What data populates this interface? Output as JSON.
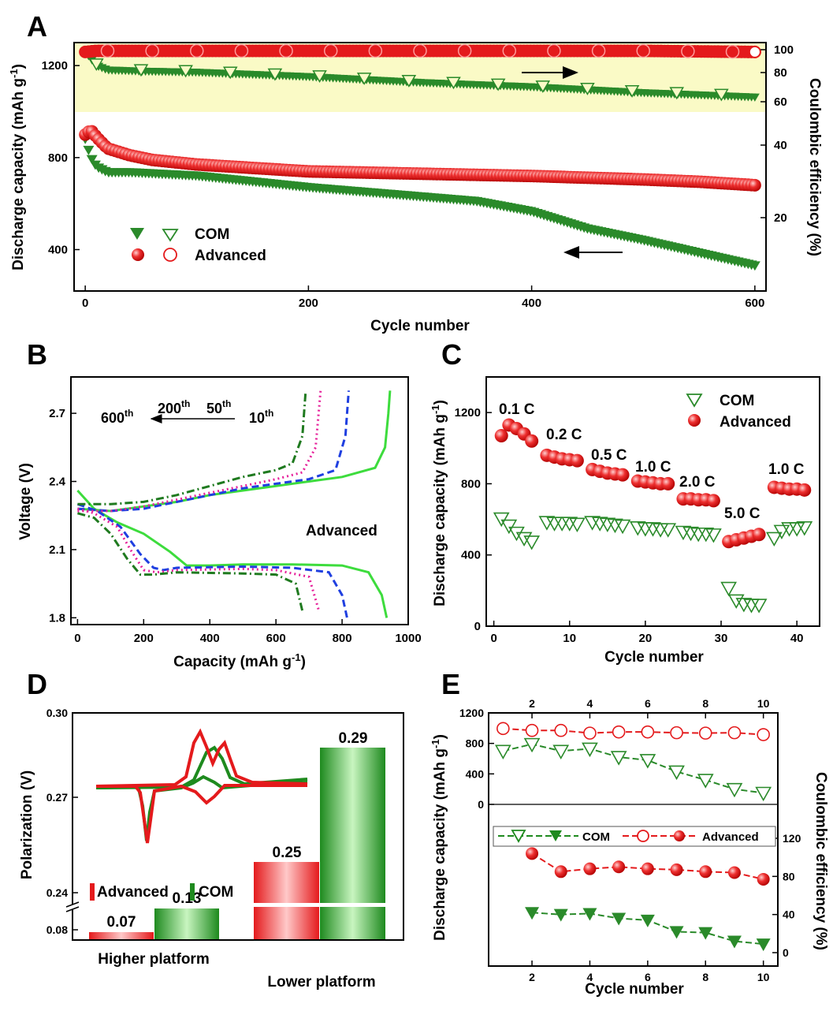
{
  "colors": {
    "com": "#2a8a2a",
    "com_light": "#b6f0b0",
    "adv": "#e41a1c",
    "adv_light": "#ffb3b3",
    "band": "#fafac6",
    "green_line": "#3ddc3d",
    "blue_dash": "#1f3fe0",
    "magenta_dot": "#e6209a",
    "dkgreen_dashdot": "#1f7a1f"
  },
  "chart_data": [
    {
      "panel": "A",
      "type": "scatter",
      "xlabel": "Cycle number",
      "ylabel": "Discharge capacity  (mAh g⁻¹)",
      "y2label": "Coulombic efficiency (%)",
      "xlim": [
        -10,
        610
      ],
      "ylim": [
        220,
        1300
      ],
      "y2lim": [
        0,
        105
      ],
      "xticks": [
        0,
        200,
        400,
        600
      ],
      "yticks": [
        400,
        800,
        1200
      ],
      "y2ticks": [
        20,
        40,
        60,
        80,
        100
      ],
      "legend": [
        "COM",
        "Advanced"
      ],
      "series": [
        {
          "name": "COM",
          "kind": "capacity",
          "x": [
            0,
            5,
            10,
            20,
            40,
            60,
            100,
            200,
            300,
            350,
            400,
            450,
            500,
            550,
            600
          ],
          "y": [
            880,
            800,
            760,
            735,
            735,
            730,
            720,
            670,
            630,
            610,
            565,
            490,
            440,
            385,
            330
          ]
        },
        {
          "name": "Advanced",
          "kind": "capacity",
          "x": [
            0,
            5,
            10,
            20,
            40,
            60,
            100,
            200,
            300,
            400,
            500,
            550,
            600
          ],
          "y": [
            900,
            920,
            890,
            840,
            810,
            790,
            770,
            740,
            730,
            720,
            705,
            695,
            680
          ]
        },
        {
          "name": "COM",
          "kind": "efficiency",
          "x": [
            0,
            10,
            20,
            50,
            100,
            200,
            300,
            400,
            500,
            600
          ],
          "y": [
            98,
            86,
            82,
            81,
            80,
            77,
            73,
            70,
            66,
            63
          ]
        },
        {
          "name": "Advanced",
          "kind": "efficiency",
          "x": [
            0,
            10,
            50,
            100,
            200,
            300,
            400,
            500,
            600
          ],
          "y": [
            98,
            99,
            99,
            99,
            99,
            99,
            99,
            99,
            98
          ]
        }
      ]
    },
    {
      "panel": "B",
      "type": "line",
      "xlabel": "Capacity  (mAh g⁻¹)",
      "ylabel": "Voltage (V)",
      "xlim": [
        -20,
        1000
      ],
      "ylim": [
        1.77,
        2.86
      ],
      "xticks": [
        0,
        200,
        400,
        600,
        800,
        1000
      ],
      "yticks": [
        1.8,
        2.1,
        2.4,
        2.7
      ],
      "label": "Advanced",
      "arrow_labels": [
        "600th",
        "200th",
        "50th",
        "10th"
      ],
      "series": [
        {
          "name": "10th",
          "discharge": {
            "x": [
              0,
              50,
              120,
              200,
              280,
              330,
              400,
              500,
              650,
              800,
              880,
              920,
              935
            ],
            "y": [
              2.36,
              2.28,
              2.22,
              2.17,
              2.09,
              2.03,
              2.03,
              2.035,
              2.035,
              2.03,
              2.0,
              1.9,
              1.8
            ]
          },
          "charge": {
            "x": [
              0,
              100,
              200,
              300,
              400,
              500,
              600,
              700,
              800,
              900,
              930,
              940,
              945
            ],
            "y": [
              2.28,
              2.27,
              2.29,
              2.31,
              2.34,
              2.36,
              2.38,
              2.4,
              2.42,
              2.46,
              2.55,
              2.7,
              2.8
            ]
          }
        },
        {
          "name": "50th",
          "discharge": {
            "x": [
              0,
              60,
              130,
              190,
              230,
              260,
              300,
              500,
              650,
              760,
              800,
              815
            ],
            "y": [
              2.3,
              2.27,
              2.2,
              2.08,
              2.02,
              2.01,
              2.02,
              2.025,
              2.02,
              2.0,
              1.9,
              1.8
            ]
          },
          "charge": {
            "x": [
              0,
              100,
              200,
              300,
              400,
              500,
              600,
              700,
              780,
              810,
              820
            ],
            "y": [
              2.28,
              2.27,
              2.28,
              2.31,
              2.34,
              2.37,
              2.39,
              2.41,
              2.45,
              2.6,
              2.8
            ]
          }
        },
        {
          "name": "200th",
          "discharge": {
            "x": [
              0,
              50,
              120,
              160,
              200,
              240,
              300,
              500,
              600,
              700,
              730
            ],
            "y": [
              2.28,
              2.26,
              2.2,
              2.1,
              2.01,
              2.0,
              2.01,
              2.015,
              2.01,
              1.98,
              1.83
            ]
          },
          "charge": {
            "x": [
              0,
              100,
              200,
              300,
              400,
              500,
              600,
              680,
              720,
              735
            ],
            "y": [
              2.27,
              2.27,
              2.29,
              2.32,
              2.35,
              2.38,
              2.41,
              2.44,
              2.55,
              2.8
            ]
          }
        },
        {
          "name": "600th",
          "discharge": {
            "x": [
              0,
              50,
              100,
              150,
              190,
              230,
              300,
              500,
              600,
              660,
              680
            ],
            "y": [
              2.26,
              2.24,
              2.17,
              2.06,
              1.99,
              1.99,
              2.0,
              1.995,
              1.99,
              1.95,
              1.83
            ]
          },
          "charge": {
            "x": [
              0,
              100,
              200,
              300,
              400,
              500,
              600,
              650,
              680,
              690
            ],
            "y": [
              2.3,
              2.3,
              2.31,
              2.34,
              2.38,
              2.42,
              2.45,
              2.48,
              2.6,
              2.8
            ]
          }
        }
      ]
    },
    {
      "panel": "C",
      "type": "scatter",
      "xlabel": "Cycle number",
      "ylabel": "Discharge capacity  (mAh g⁻¹)",
      "xlim": [
        -1,
        43
      ],
      "ylim": [
        0,
        1400
      ],
      "xticks": [
        0,
        10,
        20,
        30,
        40
      ],
      "yticks": [
        0,
        400,
        800,
        1200
      ],
      "legend": [
        "COM",
        "Advanced"
      ],
      "rate_labels": [
        "0.1 C",
        "0.2 C",
        "0.5 C",
        "1.0 C",
        "2.0 C",
        "5.0 C",
        "1.0 C"
      ],
      "series": [
        {
          "name": "COM",
          "x": [
            1,
            2,
            3,
            4,
            5,
            7,
            8,
            9,
            10,
            11,
            13,
            14,
            15,
            16,
            17,
            19,
            20,
            21,
            22,
            23,
            25,
            26,
            27,
            28,
            29,
            31,
            32,
            33,
            34,
            35,
            37,
            38,
            39,
            40,
            41
          ],
          "y": [
            600,
            560,
            520,
            490,
            470,
            580,
            575,
            575,
            575,
            570,
            580,
            575,
            570,
            565,
            560,
            550,
            545,
            545,
            540,
            540,
            525,
            520,
            515,
            515,
            510,
            210,
            140,
            120,
            115,
            115,
            490,
            530,
            545,
            545,
            550
          ]
        },
        {
          "name": "Advanced",
          "x": [
            1,
            2,
            3,
            4,
            5,
            7,
            8,
            9,
            10,
            11,
            13,
            14,
            15,
            16,
            17,
            19,
            20,
            21,
            22,
            23,
            25,
            26,
            27,
            28,
            29,
            31,
            32,
            33,
            34,
            35,
            37,
            38,
            39,
            40,
            41
          ],
          "y": [
            1070,
            1130,
            1110,
            1080,
            1040,
            960,
            950,
            940,
            935,
            930,
            880,
            870,
            860,
            855,
            850,
            815,
            810,
            805,
            800,
            800,
            715,
            715,
            710,
            710,
            705,
            475,
            485,
            495,
            505,
            515,
            780,
            775,
            770,
            770,
            765
          ]
        }
      ]
    },
    {
      "panel": "D",
      "type": "bar",
      "ylabel": "Polarization (V)",
      "categories": [
        "Higher platform",
        "Lower platform"
      ],
      "yticks": [
        "0.08",
        "0.24",
        "0.27",
        "0.30"
      ],
      "legend": [
        "Advanced",
        "COM"
      ],
      "series": [
        {
          "name": "Advanced",
          "values": [
            0.07,
            0.25
          ]
        },
        {
          "name": "COM",
          "values": [
            0.13,
            0.29
          ]
        }
      ]
    },
    {
      "panel": "E",
      "type": "line",
      "xlabel": "Cycle number",
      "ylabel": "Discharge capacity (mAh g⁻¹)",
      "y2label": "Coulombic efficiency (%)",
      "xlim": [
        0.5,
        10.5
      ],
      "xticks": [
        2,
        4,
        6,
        8,
        10
      ],
      "yticks": [
        0,
        400,
        800,
        1200
      ],
      "y2ticks": [
        0,
        40,
        80,
        120
      ],
      "legend": [
        "COM",
        "Advanced"
      ],
      "series": [
        {
          "name": "COM",
          "kind": "capacity",
          "x": [
            1,
            2,
            3,
            4,
            5,
            6,
            7,
            8,
            9,
            10
          ],
          "y": [
            700,
            790,
            700,
            730,
            620,
            580,
            430,
            320,
            200,
            150
          ]
        },
        {
          "name": "Advanced",
          "kind": "capacity",
          "x": [
            1,
            2,
            3,
            4,
            5,
            6,
            7,
            8,
            9,
            10
          ],
          "y": [
            995,
            970,
            970,
            935,
            950,
            950,
            940,
            935,
            940,
            915
          ]
        },
        {
          "name": "COM",
          "kind": "efficiency",
          "x": [
            2,
            3,
            4,
            5,
            6,
            7,
            8,
            9,
            10
          ],
          "y": [
            42,
            40,
            41,
            36,
            34,
            22,
            21,
            12,
            9
          ]
        },
        {
          "name": "Advanced",
          "kind": "efficiency",
          "x": [
            2,
            3,
            4,
            5,
            6,
            7,
            8,
            9,
            10
          ],
          "y": [
            104,
            85,
            88,
            90,
            88,
            87,
            85,
            84,
            77
          ]
        }
      ]
    }
  ],
  "labels": {
    "panels": [
      "A",
      "B",
      "C",
      "D",
      "E"
    ],
    "a_xlabel": "Cycle number",
    "a_ylabel": "Discharge capacity  (mAh g",
    "a_y2label": "Coulombic efficiency (%)",
    "legend_com": "COM",
    "legend_adv": "Advanced",
    "b_xlabel": "Capacity  (mAh g",
    "b_ylabel": "Voltage (V)",
    "b_adv": "Advanced",
    "b_600": "600",
    "b_200": "200",
    "b_50": "50",
    "b_10": "10",
    "th": "th",
    "c_xlabel": "Cycle number",
    "c_ylabel": "Discharge capacity  (mAh g",
    "d_ylabel": "Polarization (V)",
    "d_cat1": "Higher platform",
    "d_cat2": "Lower platform",
    "d_v1": "0.07",
    "d_v2": "0.13",
    "d_v3": "0.25",
    "d_v4": "0.29",
    "e_xlabel": "Cycle number",
    "e_ylabel": "Discharge capacity (mAh g",
    "e_y2label": "Coulombic efficiency (%)",
    "unit_sup": "-1"
  }
}
